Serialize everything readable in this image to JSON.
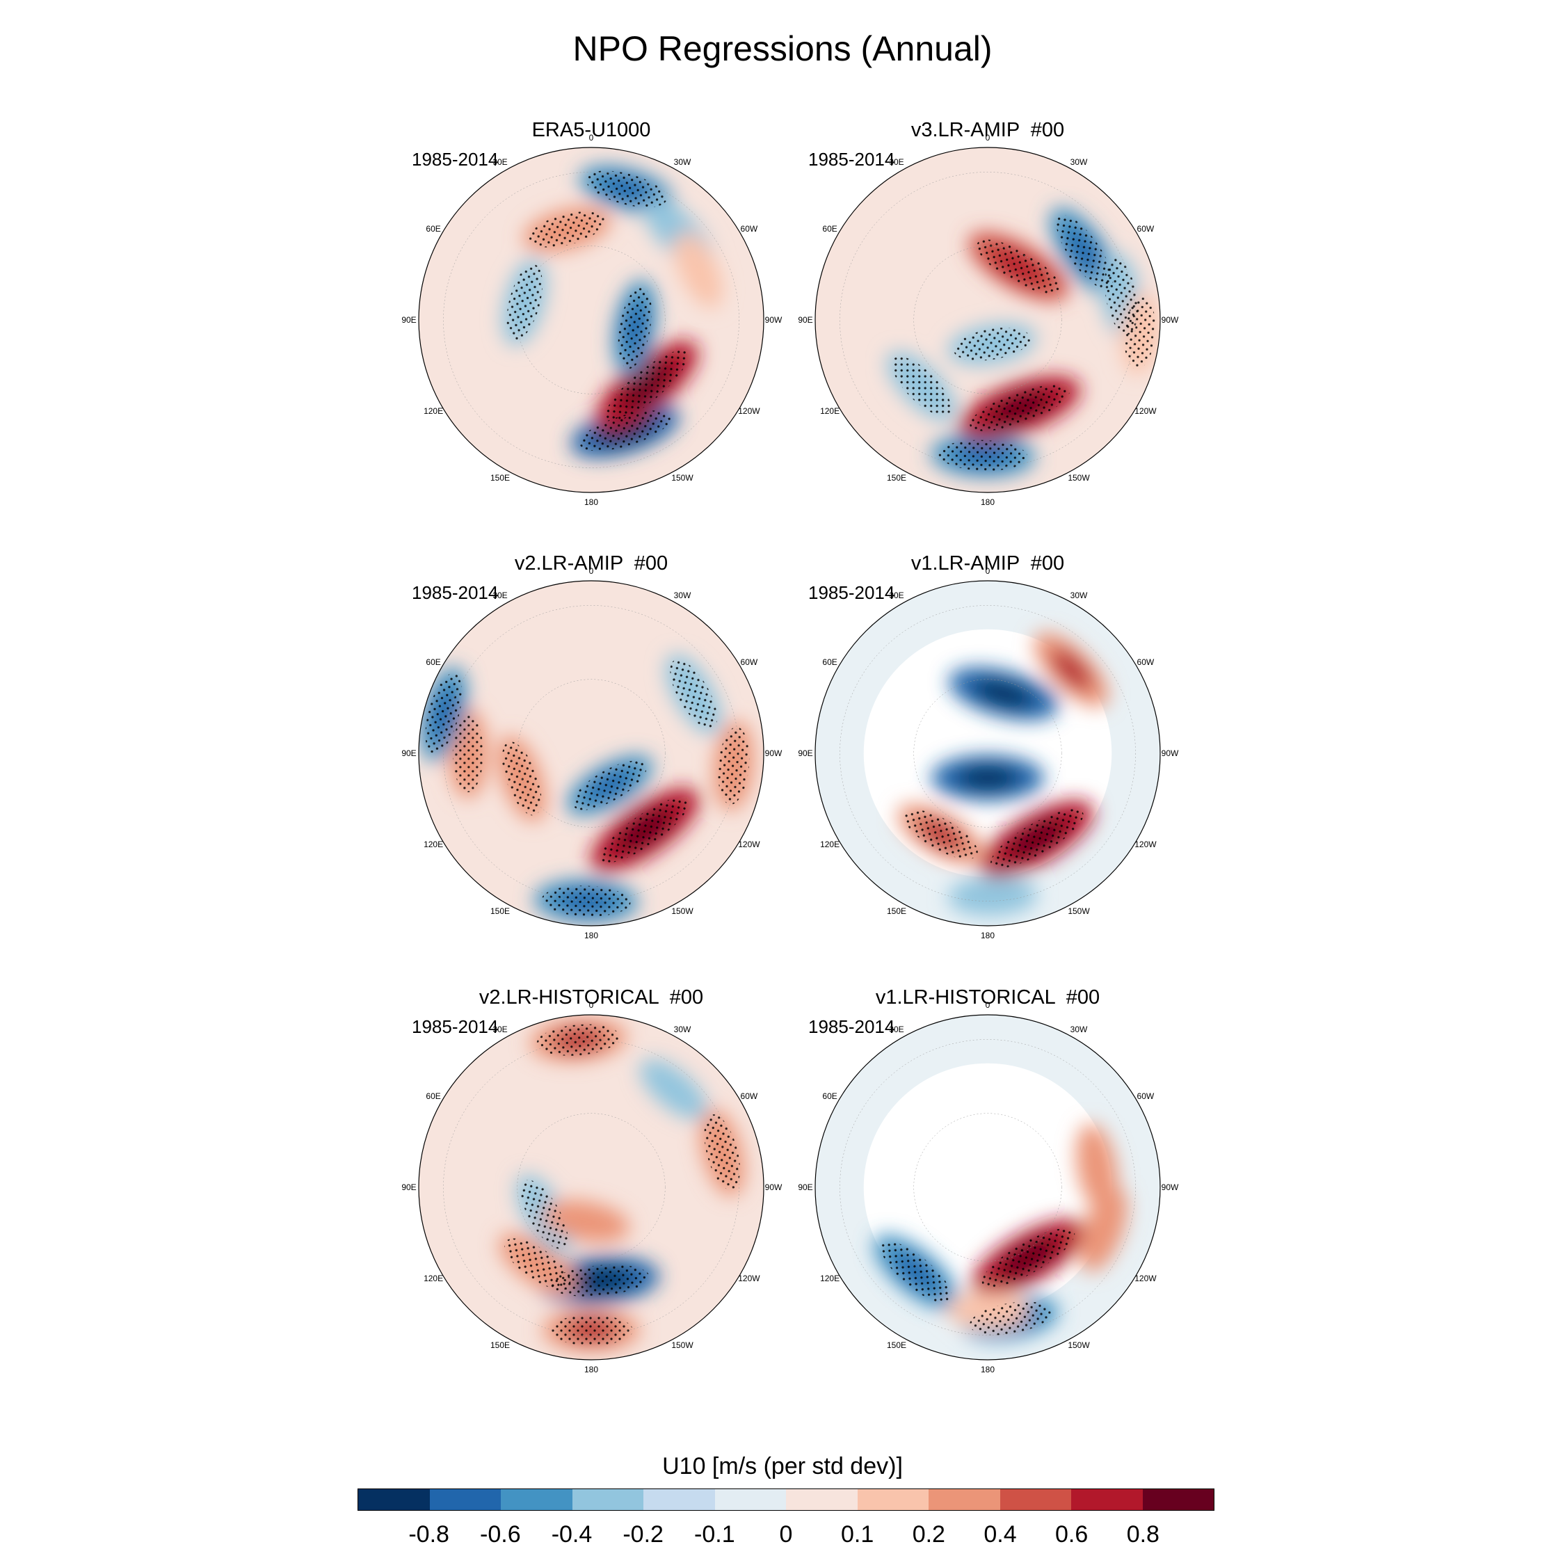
{
  "figure": {
    "title": "NPO Regressions (Annual)"
  },
  "longitude_labels": [
    "180",
    "150E",
    "120E",
    "90E",
    "60E",
    "30E",
    "0",
    "30W",
    "60W",
    "90W",
    "120W",
    "150W"
  ],
  "panels": [
    {
      "title": "ERA5-U1000",
      "period": "1985-2014"
    },
    {
      "title": "v3.LR-AMIP  #00",
      "period": "1985-2014"
    },
    {
      "title": "v2.LR-AMIP  #00",
      "period": "1985-2014"
    },
    {
      "title": "v1.LR-AMIP  #00",
      "period": "1985-2014"
    },
    {
      "title": "v2.LR-HISTORICAL  #00",
      "period": "1985-2014"
    },
    {
      "title": "v1.LR-HISTORICAL  #00",
      "period": "1985-2014"
    }
  ],
  "colorbar": {
    "title": "U10 [m/s (per std dev)]",
    "tick_labels": [
      "-0.8",
      "-0.6",
      "-0.4",
      "-0.2",
      "-0.1",
      "0",
      "0.1",
      "0.2",
      "0.4",
      "0.6",
      "0.8"
    ],
    "colors": [
      "#053061",
      "#2166ac",
      "#4393c3",
      "#92c5de",
      "#c6dbef",
      "#e3edf3",
      "#f7e4dd",
      "#f9c4ac",
      "#eb9578",
      "#cf5246",
      "#b2182b",
      "#67001f"
    ]
  },
  "chart_data": [
    {
      "type": "heatmap",
      "projection": "north-polar-stereographic",
      "title": "ERA5-U1000",
      "subtitle": "1985-2014",
      "variable": "U10",
      "units": "m/s (per std dev)",
      "levels": [
        -0.8,
        -0.6,
        -0.4,
        -0.2,
        -0.1,
        0,
        0.1,
        0.2,
        0.4,
        0.6,
        0.8
      ],
      "features": [
        {
          "lon": -163,
          "lat": 43,
          "value": -0.6,
          "significant": true
        },
        {
          "lon": -140,
          "lat": 55,
          "value": 0.8,
          "significant": true
        },
        {
          "lon": -100,
          "lat": 72,
          "value": -0.4,
          "significant": true
        },
        {
          "lon": 75,
          "lat": 62,
          "value": -0.3,
          "significant": true
        },
        {
          "lon": 15,
          "lat": 52,
          "value": 0.3,
          "significant": true
        },
        {
          "lon": -15,
          "lat": 35,
          "value": -0.4,
          "significant": true
        },
        {
          "lon": -45,
          "lat": 40,
          "value": -0.3,
          "significant": false
        },
        {
          "lon": -65,
          "lat": 42,
          "value": 0.2,
          "significant": false
        }
      ]
    },
    {
      "type": "heatmap",
      "projection": "north-polar-stereographic",
      "title": "v3.LR-AMIP  #00",
      "subtitle": "1985-2014",
      "variable": "U10",
      "units": "m/s (per std dev)",
      "levels": [
        -0.8,
        -0.6,
        -0.4,
        -0.2,
        -0.1,
        0,
        0.1,
        0.2,
        0.4,
        0.6,
        0.8
      ],
      "features": [
        {
          "lon": 178,
          "lat": 35,
          "value": -0.5,
          "significant": true
        },
        {
          "lon": -160,
          "lat": 52,
          "value": 0.8,
          "significant": true
        },
        {
          "lon": 135,
          "lat": 52,
          "value": -0.3,
          "significant": true
        },
        {
          "lon": -170,
          "lat": 80,
          "value": -0.3,
          "significant": true
        },
        {
          "lon": -30,
          "lat": 65,
          "value": 0.6,
          "significant": true
        },
        {
          "lon": -55,
          "lat": 42,
          "value": -0.5,
          "significant": true
        },
        {
          "lon": -80,
          "lat": 35,
          "value": -0.3,
          "significant": true
        },
        {
          "lon": -95,
          "lat": 28,
          "value": 0.2,
          "significant": true
        }
      ]
    },
    {
      "type": "heatmap",
      "projection": "north-polar-stereographic",
      "title": "v2.LR-AMIP  #00",
      "subtitle": "1985-2014",
      "variable": "U10",
      "units": "m/s (per std dev)",
      "levels": [
        -0.8,
        -0.6,
        -0.4,
        -0.2,
        -0.1,
        0,
        0.1,
        0.2,
        0.4,
        0.6,
        0.8
      ],
      "features": [
        {
          "lon": 178,
          "lat": 30,
          "value": -0.5,
          "significant": true
        },
        {
          "lon": -145,
          "lat": 52,
          "value": 0.8,
          "significant": true
        },
        {
          "lon": -150,
          "lat": 75,
          "value": -0.4,
          "significant": true
        },
        {
          "lon": 110,
          "lat": 60,
          "value": 0.3,
          "significant": true
        },
        {
          "lon": 90,
          "lat": 40,
          "value": 0.3,
          "significant": true
        },
        {
          "lon": 75,
          "lat": 28,
          "value": -0.4,
          "significant": true
        },
        {
          "lon": -95,
          "lat": 32,
          "value": 0.3,
          "significant": true
        },
        {
          "lon": -60,
          "lat": 42,
          "value": -0.3,
          "significant": true
        }
      ]
    },
    {
      "type": "heatmap",
      "projection": "north-polar-stereographic",
      "title": "v1.LR-AMIP  #00",
      "subtitle": "1985-2014",
      "variable": "U10",
      "units": "m/s (per std dev)",
      "levels": [
        -0.8,
        -0.6,
        -0.4,
        -0.2,
        -0.1,
        0,
        0.1,
        0.2,
        0.4,
        0.6,
        0.8
      ],
      "missing_over_land": true,
      "features": [
        {
          "lon": -178,
          "lat": 32,
          "value": -0.3,
          "significant": false
        },
        {
          "lon": -150,
          "lat": 50,
          "value": 0.8,
          "significant": true
        },
        {
          "lon": 150,
          "lat": 52,
          "value": 0.4,
          "significant": true
        },
        {
          "lon": 180,
          "lat": 80,
          "value": -0.6,
          "significant": false
        },
        {
          "lon": -15,
          "lat": 65,
          "value": -0.6,
          "significant": false
        },
        {
          "lon": -45,
          "lat": 42,
          "value": 0.4,
          "significant": false
        }
      ]
    },
    {
      "type": "heatmap",
      "projection": "north-polar-stereographic",
      "title": "v2.LR-HISTORICAL  #00",
      "subtitle": "1985-2014",
      "variable": "U10",
      "units": "m/s (per std dev)",
      "levels": [
        -0.8,
        -0.6,
        -0.4,
        -0.2,
        -0.1,
        0,
        0.1,
        0.2,
        0.4,
        0.6,
        0.8
      ],
      "features": [
        {
          "lon": 180,
          "lat": 32,
          "value": 0.4,
          "significant": true
        },
        {
          "lon": -175,
          "lat": 52,
          "value": -0.7,
          "significant": true
        },
        {
          "lon": 145,
          "lat": 52,
          "value": 0.3,
          "significant": true
        },
        {
          "lon": 120,
          "lat": 68,
          "value": -0.3,
          "significant": true
        },
        {
          "lon": 170,
          "lat": 76,
          "value": 0.3,
          "significant": false
        },
        {
          "lon": 5,
          "lat": 30,
          "value": 0.4,
          "significant": true
        },
        {
          "lon": -75,
          "lat": 35,
          "value": 0.3,
          "significant": true
        },
        {
          "lon": -40,
          "lat": 38,
          "value": -0.2,
          "significant": false
        }
      ]
    },
    {
      "type": "heatmap",
      "projection": "north-polar-stereographic",
      "title": "v1.LR-HISTORICAL  #00",
      "subtitle": "1985-2014",
      "variable": "U10",
      "units": "m/s (per std dev)",
      "levels": [
        -0.8,
        -0.6,
        -0.4,
        -0.2,
        -0.1,
        0,
        0.1,
        0.2,
        0.4,
        0.6,
        0.8
      ],
      "missing_over_land": true,
      "features": [
        {
          "lon": -170,
          "lat": 36,
          "value": -0.4,
          "significant": true
        },
        {
          "lon": -150,
          "lat": 57,
          "value": 0.8,
          "significant": true
        },
        {
          "lon": 140,
          "lat": 45,
          "value": -0.5,
          "significant": true
        },
        {
          "lon": 180,
          "lat": 40,
          "value": 0.2,
          "significant": false
        },
        {
          "lon": -110,
          "lat": 40,
          "value": 0.3,
          "significant": false
        },
        {
          "lon": -80,
          "lat": 45,
          "value": 0.3,
          "significant": false
        }
      ]
    }
  ]
}
